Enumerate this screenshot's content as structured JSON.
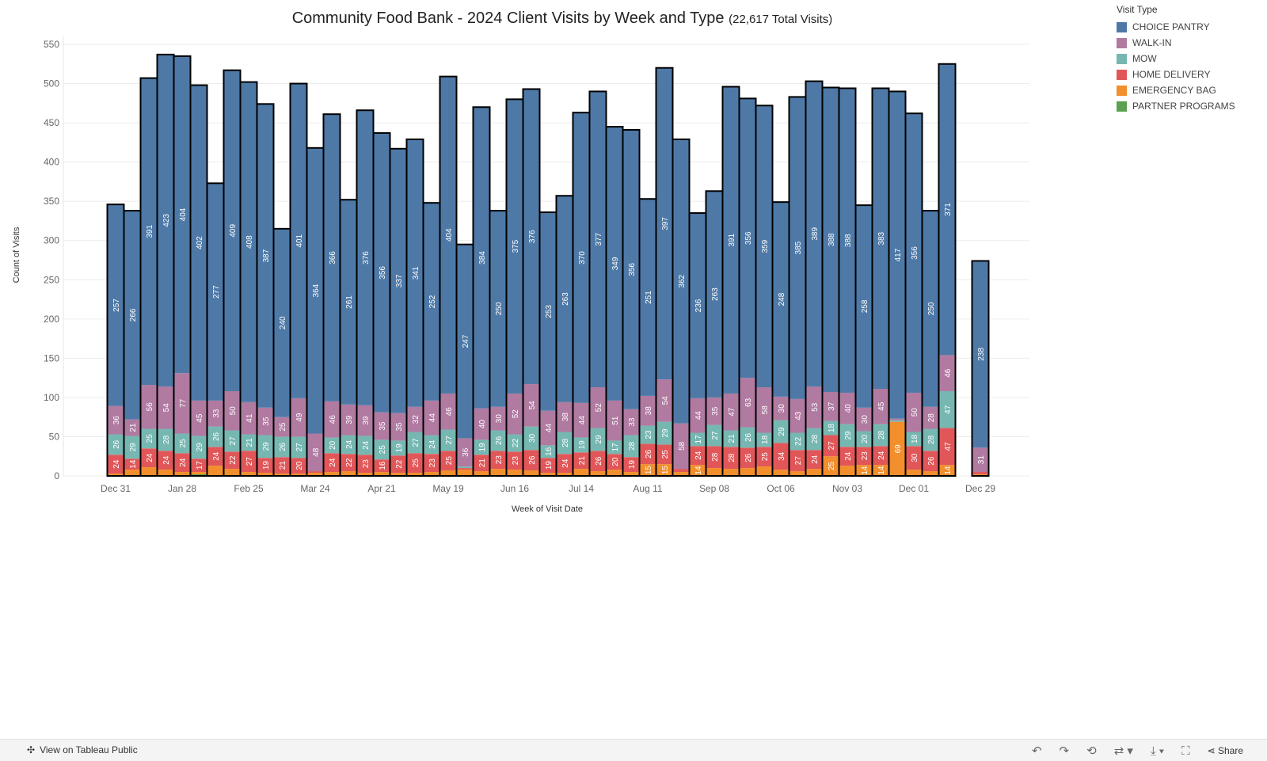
{
  "chart_data": {
    "type": "bar",
    "stacked": true,
    "title": "Community Food Bank -  2024 Client Visits by Week and Type",
    "subtitle": "(22,617 Total Visits)",
    "xlabel": "Week of Visit Date",
    "ylabel": "Count of Visits",
    "ylim": [
      0,
      550
    ],
    "yticks": [
      0,
      50,
      100,
      150,
      200,
      250,
      300,
      350,
      400,
      450,
      500,
      550
    ],
    "grid": true,
    "legend_position": "top-right",
    "legend_title": "Visit Type",
    "categories": [
      "Dec 31",
      "Jan 07",
      "Jan 14",
      "Jan 21",
      "Jan 28",
      "Feb 04",
      "Feb 11",
      "Feb 18",
      "Feb 25",
      "Mar 03",
      "Mar 10",
      "Mar 17",
      "Mar 24",
      "Mar 31",
      "Apr 07",
      "Apr 14",
      "Apr 21",
      "Apr 28",
      "May 05",
      "May 12",
      "May 19",
      "May 26",
      "Jun 02",
      "Jun 09",
      "Jun 16",
      "Jun 23",
      "Jun 30",
      "Jul 07",
      "Jul 14",
      "Jul 21",
      "Jul 28",
      "Aug 04",
      "Aug 11",
      "Aug 18",
      "Aug 25",
      "Sep 01",
      "Sep 08",
      "Sep 15",
      "Sep 22",
      "Sep 29",
      "Oct 06",
      "Oct 13",
      "Oct 20",
      "Oct 27",
      "Nov 03",
      "Nov 10",
      "Nov 17",
      "Nov 24",
      "Dec 01",
      "Dec 08",
      "Dec 15",
      "Dec 22",
      "Dec 29"
    ],
    "xtick_labels": [
      "Dec 31",
      "Jan 28",
      "Feb 25",
      "Mar 24",
      "Apr 21",
      "May 19",
      "Jun 16",
      "Jul 14",
      "Aug 11",
      "Sep 08",
      "Oct 06",
      "Nov 03",
      "Dec 01",
      "Dec 29"
    ],
    "series": [
      {
        "name": "PARTNER PROGRAMS",
        "color": "#59a14f",
        "values": [
          0,
          0,
          0,
          0,
          0,
          2,
          0,
          0,
          0,
          0,
          0,
          0,
          0,
          0,
          0,
          0,
          0,
          0,
          0,
          0,
          0,
          0,
          0,
          0,
          0,
          0,
          0,
          0,
          0,
          0,
          0,
          0,
          0,
          0,
          0,
          0,
          0,
          0,
          0,
          0,
          0,
          0,
          0,
          0,
          0,
          0,
          0,
          0,
          0,
          0,
          0,
          null,
          0
        ]
      },
      {
        "name": "EMERGENCY BAG",
        "color": "#f28e2b",
        "values": [
          3,
          8,
          11,
          8,
          5,
          3,
          13,
          9,
          5,
          4,
          3,
          3,
          4,
          5,
          6,
          4,
          5,
          4,
          4,
          5,
          7,
          8,
          6,
          9,
          8,
          7,
          4,
          4,
          9,
          6,
          8,
          5,
          15,
          15,
          5,
          14,
          10,
          9,
          10,
          12,
          8,
          6,
          9,
          25,
          13,
          14,
          14,
          69,
          8,
          6,
          14,
          null,
          2
        ]
      },
      {
        "name": "HOME DELIVERY",
        "color": "#e15759",
        "values": [
          24,
          14,
          24,
          24,
          24,
          17,
          24,
          22,
          27,
          19,
          21,
          20,
          2,
          24,
          22,
          23,
          16,
          22,
          25,
          23,
          25,
          2,
          21,
          23,
          23,
          26,
          19,
          24,
          21,
          26,
          20,
          19,
          26,
          25,
          4,
          24,
          28,
          28,
          26,
          25,
          34,
          27,
          24,
          27,
          24,
          23,
          24,
          0,
          30,
          26,
          47,
          null,
          3
        ]
      },
      {
        "name": "MOW",
        "color": "#76b7b2",
        "values": [
          26,
          29,
          25,
          28,
          25,
          29,
          26,
          27,
          21,
          29,
          26,
          27,
          0,
          20,
          24,
          24,
          25,
          19,
          27,
          24,
          27,
          2,
          19,
          26,
          22,
          30,
          16,
          28,
          19,
          29,
          17,
          28,
          23,
          29,
          0,
          17,
          27,
          21,
          26,
          18,
          29,
          22,
          28,
          18,
          29,
          20,
          28,
          2,
          18,
          28,
          47,
          null,
          0
        ]
      },
      {
        "name": "WALK-IN",
        "color": "#b07aa1",
        "values": [
          36,
          21,
          56,
          54,
          77,
          45,
          33,
          50,
          41,
          35,
          25,
          49,
          48,
          46,
          39,
          39,
          35,
          35,
          32,
          44,
          46,
          36,
          40,
          30,
          52,
          54,
          44,
          38,
          44,
          52,
          51,
          33,
          38,
          54,
          58,
          44,
          35,
          47,
          63,
          58,
          30,
          43,
          53,
          37,
          40,
          30,
          45,
          2,
          50,
          28,
          46,
          null,
          31
        ]
      },
      {
        "name": "CHOICE PANTRY",
        "color": "#4e79a7",
        "values": [
          257,
          266,
          391,
          423,
          404,
          402,
          277,
          409,
          408,
          387,
          240,
          401,
          364,
          366,
          261,
          376,
          356,
          337,
          341,
          252,
          404,
          247,
          384,
          250,
          375,
          376,
          253,
          263,
          370,
          377,
          349,
          356,
          251,
          397,
          362,
          236,
          263,
          391,
          356,
          359,
          248,
          385,
          389,
          388,
          388,
          258,
          383,
          417,
          356,
          250,
          371,
          null,
          238
        ]
      }
    ]
  },
  "legend": {
    "title": "Visit Type",
    "items": [
      {
        "label": "CHOICE PANTRY",
        "color": "#4e79a7"
      },
      {
        "label": "WALK-IN",
        "color": "#b07aa1"
      },
      {
        "label": "MOW",
        "color": "#76b7b2"
      },
      {
        "label": "HOME DELIVERY",
        "color": "#e15759"
      },
      {
        "label": "EMERGENCY BAG",
        "color": "#f28e2b"
      },
      {
        "label": "PARTNER PROGRAMS",
        "color": "#59a14f"
      }
    ]
  },
  "footer": {
    "view_label": "View on Tableau Public",
    "share_label": "Share"
  }
}
